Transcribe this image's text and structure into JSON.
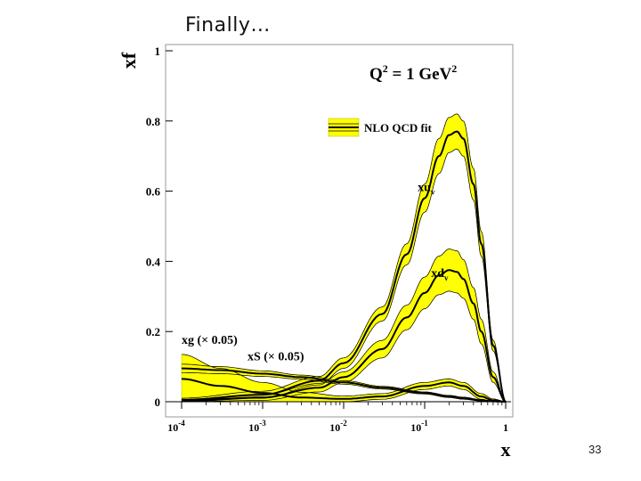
{
  "slide": {
    "title": "Finally…",
    "page_number": "33"
  },
  "chart_data": {
    "type": "line",
    "title": "Q² = 1 GeV²",
    "title_main": "Q",
    "title_sup1": "2",
    "title_rest": " = 1 GeV",
    "title_sup2": "2",
    "xlabel": "x",
    "ylabel": "xf",
    "x_scale": "log",
    "xlim": [
      0.0001,
      1
    ],
    "ylim": [
      0,
      1
    ],
    "x_ticks": [
      {
        "value": 0.0001,
        "base": "10",
        "exp": "-4"
      },
      {
        "value": 0.001,
        "base": "10",
        "exp": "-3"
      },
      {
        "value": 0.01,
        "base": "10",
        "exp": "-2"
      },
      {
        "value": 0.1,
        "base": "10",
        "exp": "-1"
      },
      {
        "value": 1,
        "base": "1",
        "exp": ""
      }
    ],
    "y_ticks": [
      {
        "value": 0,
        "label": "0"
      },
      {
        "value": 0.2,
        "label": "0.2"
      },
      {
        "value": 0.4,
        "label": "0.4"
      },
      {
        "value": 0.6,
        "label": "0.6"
      },
      {
        "value": 0.8,
        "label": "0.8"
      },
      {
        "value": 1,
        "label": "1"
      }
    ],
    "grid": false,
    "band_color": "#ffff00",
    "line_color": "#000000",
    "legend": {
      "label": "NLO QCD fit",
      "position": "top-right"
    },
    "series": [
      {
        "name": "xuv",
        "label_main": "xu",
        "label_sub": "v",
        "label_at": {
          "x": 0.082,
          "y": 0.6
        },
        "x": [
          0.0001,
          0.001,
          0.005,
          0.01,
          0.03,
          0.06,
          0.1,
          0.15,
          0.2,
          0.25,
          0.3,
          0.4,
          0.5,
          0.7,
          1
        ],
        "y": [
          0.005,
          0.02,
          0.06,
          0.11,
          0.25,
          0.42,
          0.58,
          0.7,
          0.76,
          0.77,
          0.75,
          0.62,
          0.45,
          0.16,
          0.0
        ],
        "band": [
          0.005,
          0.01,
          0.012,
          0.015,
          0.02,
          0.03,
          0.04,
          0.05,
          0.05,
          0.05,
          0.05,
          0.045,
          0.035,
          0.015,
          0.0
        ]
      },
      {
        "name": "xdv",
        "label_main": "xd",
        "label_sub": "v",
        "label_at": {
          "x": 0.12,
          "y": 0.355
        },
        "x": [
          0.0001,
          0.001,
          0.005,
          0.01,
          0.03,
          0.06,
          0.1,
          0.15,
          0.2,
          0.25,
          0.3,
          0.4,
          0.5,
          0.7,
          1
        ],
        "y": [
          0.003,
          0.012,
          0.04,
          0.07,
          0.15,
          0.24,
          0.31,
          0.36,
          0.375,
          0.37,
          0.35,
          0.28,
          0.2,
          0.07,
          0.0
        ],
        "band": [
          0.004,
          0.008,
          0.012,
          0.015,
          0.025,
          0.035,
          0.045,
          0.055,
          0.06,
          0.06,
          0.055,
          0.045,
          0.035,
          0.015,
          0.0
        ]
      },
      {
        "name": "xg",
        "label": "xg (× 0.05)",
        "label_at": {
          "x": 0.0001,
          "y": 0.165
        },
        "x": [
          0.0001,
          0.0003,
          0.001,
          0.003,
          0.01,
          0.03,
          0.1,
          0.2,
          0.3,
          0.5,
          0.7,
          1
        ],
        "y": [
          0.065,
          0.045,
          0.025,
          0.012,
          0.008,
          0.015,
          0.045,
          0.055,
          0.045,
          0.015,
          0.004,
          0.0
        ],
        "band": [
          0.07,
          0.05,
          0.03,
          0.015,
          0.008,
          0.008,
          0.01,
          0.01,
          0.01,
          0.008,
          0.004,
          0.0
        ]
      },
      {
        "name": "xS",
        "label": "xS (× 0.05)",
        "label_at": {
          "x": 0.00065,
          "y": 0.118
        },
        "x": [
          0.0001,
          0.0003,
          0.001,
          0.003,
          0.01,
          0.03,
          0.1,
          0.2,
          0.3,
          0.5,
          0.7,
          1
        ],
        "y": [
          0.095,
          0.09,
          0.08,
          0.07,
          0.055,
          0.04,
          0.025,
          0.015,
          0.01,
          0.004,
          0.001,
          0.0
        ],
        "band": [
          0.012,
          0.01,
          0.008,
          0.006,
          0.005,
          0.004,
          0.003,
          0.003,
          0.003,
          0.002,
          0.001,
          0.0
        ]
      }
    ]
  }
}
